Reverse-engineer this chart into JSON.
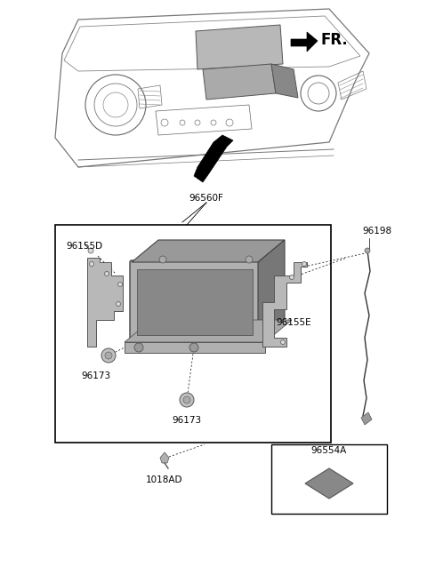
{
  "bg_color": "#ffffff",
  "fig_width": 4.8,
  "fig_height": 6.56,
  "dpi": 100,
  "labels": {
    "FR": "FR.",
    "96560F": "96560F",
    "96155D": "96155D",
    "96173_left": "96173",
    "96173_bottom": "96173",
    "96155E": "96155E",
    "96198": "96198",
    "1018AD": "1018AD",
    "96554A": "96554A"
  },
  "font_size_labels": 7.5,
  "font_size_fr": 12,
  "line_color": "#000000",
  "dark_gray": "#444444",
  "mid_gray": "#888888",
  "light_gray": "#bbbbbb",
  "part_body": "#999999",
  "part_dark": "#666666",
  "part_light": "#cccccc"
}
